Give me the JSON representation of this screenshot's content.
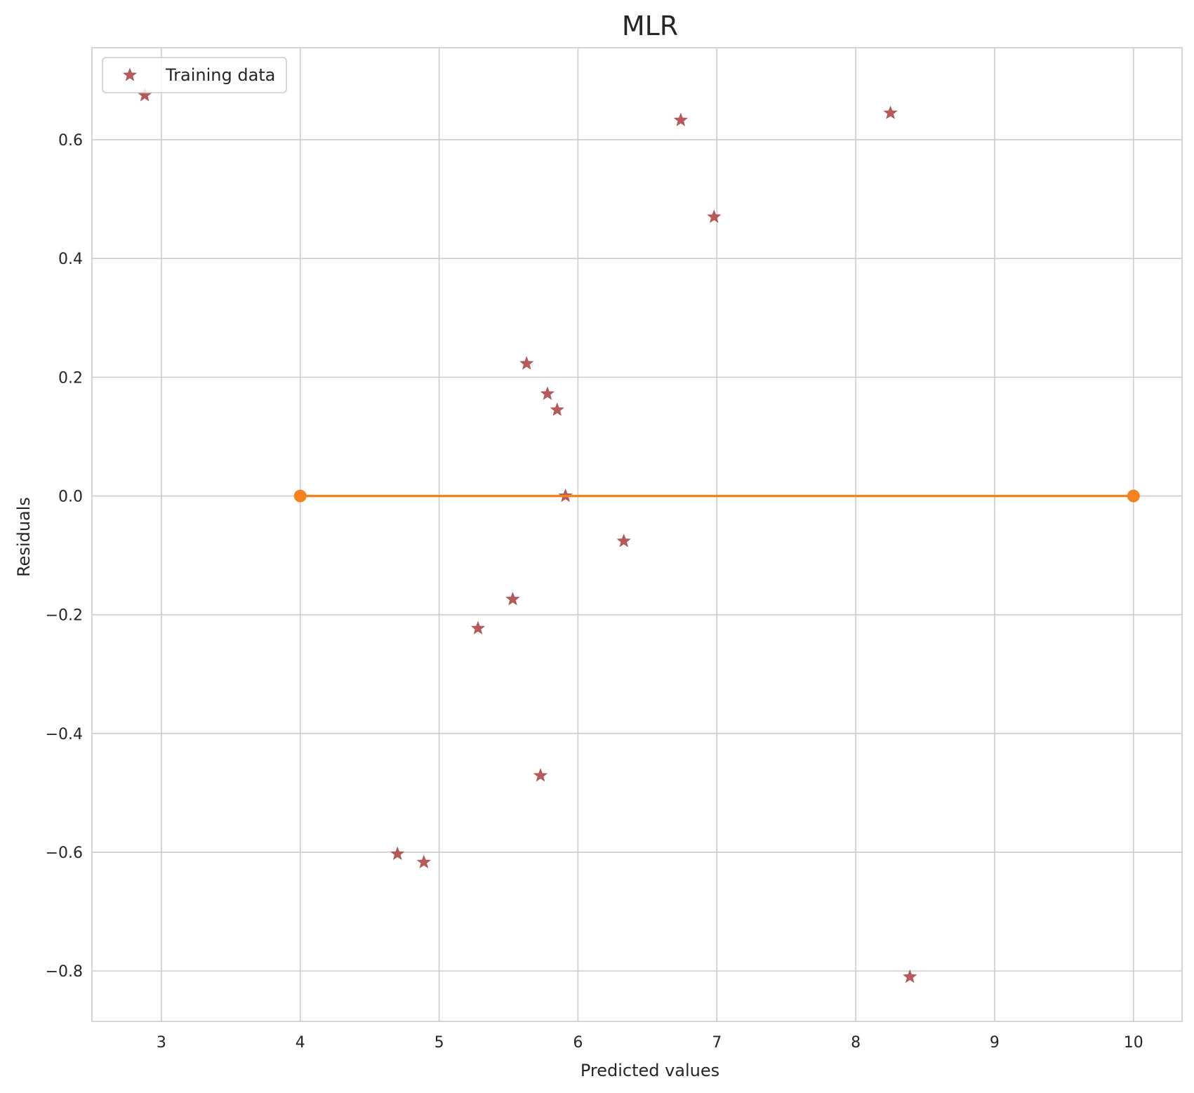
{
  "chart_data": {
    "type": "scatter",
    "title": "MLR",
    "xlabel": "Predicted values",
    "ylabel": "Residuals",
    "xlim": [
      2.5,
      10.35
    ],
    "ylim": [
      -0.885,
      0.755
    ],
    "xticks": [
      3,
      4,
      5,
      6,
      7,
      8,
      9,
      10
    ],
    "yticks": [
      -0.8,
      -0.6,
      -0.4,
      -0.2,
      0.0,
      0.2,
      0.4,
      0.6
    ],
    "xtick_labels": [
      "3",
      "4",
      "5",
      "6",
      "7",
      "8",
      "9",
      "10"
    ],
    "ytick_labels": [
      "−0.8",
      "−0.6",
      "−0.4",
      "−0.2",
      "0.0",
      "0.2",
      "0.4",
      "0.6"
    ],
    "grid": true,
    "legend": {
      "position": "upper-left",
      "entries": [
        {
          "label": "Training data",
          "marker": "star",
          "color": "#a83e3e"
        }
      ]
    },
    "series": [
      {
        "name": "Training data",
        "kind": "scatter",
        "marker": "star",
        "color": "#a83e3e",
        "points": [
          {
            "x": 2.88,
            "y": 0.675
          },
          {
            "x": 6.74,
            "y": 0.633
          },
          {
            "x": 8.25,
            "y": 0.645
          },
          {
            "x": 6.98,
            "y": 0.47
          },
          {
            "x": 5.63,
            "y": 0.223
          },
          {
            "x": 5.78,
            "y": 0.172
          },
          {
            "x": 5.85,
            "y": 0.145
          },
          {
            "x": 5.91,
            "y": 0.0
          },
          {
            "x": 6.33,
            "y": -0.076
          },
          {
            "x": 5.53,
            "y": -0.174
          },
          {
            "x": 5.28,
            "y": -0.223
          },
          {
            "x": 5.73,
            "y": -0.471
          },
          {
            "x": 4.7,
            "y": -0.603
          },
          {
            "x": 4.89,
            "y": -0.617
          },
          {
            "x": 8.39,
            "y": -0.81
          }
        ]
      },
      {
        "kind": "line",
        "color": "#f58220",
        "points": [
          {
            "x": 4,
            "y": 0.0
          },
          {
            "x": 10,
            "y": 0.0
          }
        ]
      }
    ]
  },
  "colors": {
    "grid": "#cccccc",
    "axes_edge": "#cccccc",
    "marker_fill": "#a83e3e",
    "marker_edge": "#b55555",
    "line": "#f58220"
  }
}
